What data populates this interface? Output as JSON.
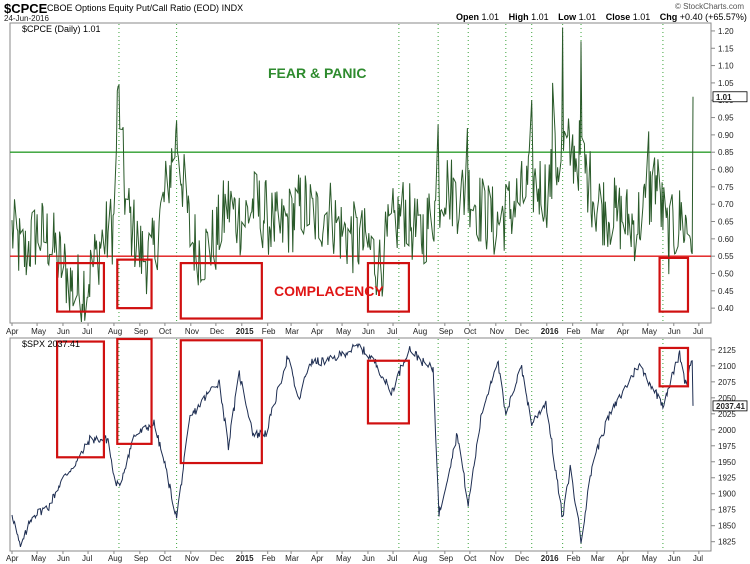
{
  "header": {
    "symbol": "$CPCE",
    "description": "CBOE Options Equity Put/Call Ratio (EOD)",
    "exchange": "INDX",
    "date": "24-Jun-2016",
    "watermark": "© StockCharts.com",
    "ohlc": [
      {
        "label": "Open",
        "value": "1.01"
      },
      {
        "label": "High",
        "value": "1.01"
      },
      {
        "label": "Low",
        "value": "1.01"
      },
      {
        "label": "Close",
        "value": "1.01"
      },
      {
        "label": "Chg",
        "value": "+0.40 (+65.57%)"
      }
    ]
  },
  "chart_data": [
    {
      "type": "line",
      "title": "$CPCE (Daily) 1.01",
      "series_color": "#2a5a2a",
      "last_value_label": "1.01",
      "ylim": [
        0.36,
        1.22
      ],
      "y_ticks": [
        "1.20",
        "1.15",
        "1.10",
        "1.05",
        "1.00",
        "0.95",
        "0.90",
        "0.85",
        "0.80",
        "0.75",
        "0.70",
        "0.65",
        "0.60",
        "0.55",
        "0.50",
        "0.45",
        "0.40"
      ],
      "x_start": "2014-04-01",
      "x_end": "2016-06-24",
      "reference_lines": [
        {
          "value": 0.85,
          "color": "#2e9e2e"
        },
        {
          "value": 0.55,
          "color": "#e01515"
        }
      ],
      "annotations": [
        "FEAR & PANIC",
        "COMPLACENCY"
      ],
      "anchors": [
        [
          "2014-04-01",
          0.62
        ],
        [
          "2014-04-15",
          0.55
        ],
        [
          "2014-05-01",
          0.62
        ],
        [
          "2014-05-15",
          0.6
        ],
        [
          "2014-06-01",
          0.52
        ],
        [
          "2014-06-15",
          0.45
        ],
        [
          "2014-07-01",
          0.48
        ],
        [
          "2014-07-15",
          0.58
        ],
        [
          "2014-08-01",
          0.64
        ],
        [
          "2014-08-06",
          1.04
        ],
        [
          "2014-08-15",
          0.7
        ],
        [
          "2014-09-01",
          0.56
        ],
        [
          "2014-09-15",
          0.54
        ],
        [
          "2014-10-01",
          0.72
        ],
        [
          "2014-10-15",
          0.9
        ],
        [
          "2014-11-01",
          0.6
        ],
        [
          "2014-11-15",
          0.56
        ],
        [
          "2014-12-01",
          0.6
        ],
        [
          "2014-12-15",
          0.7
        ],
        [
          "2015-01-01",
          0.65
        ],
        [
          "2015-01-15",
          0.7
        ],
        [
          "2015-02-01",
          0.66
        ],
        [
          "2015-02-15",
          0.62
        ],
        [
          "2015-03-01",
          0.66
        ],
        [
          "2015-03-15",
          0.7
        ],
        [
          "2015-04-01",
          0.66
        ],
        [
          "2015-04-15",
          0.68
        ],
        [
          "2015-05-01",
          0.62
        ],
        [
          "2015-05-15",
          0.6
        ],
        [
          "2015-06-01",
          0.58
        ],
        [
          "2015-06-15",
          0.52
        ],
        [
          "2015-07-01",
          0.64
        ],
        [
          "2015-07-15",
          0.68
        ],
        [
          "2015-08-01",
          0.6
        ],
        [
          "2015-08-15",
          0.66
        ],
        [
          "2015-09-01",
          0.76
        ],
        [
          "2015-09-15",
          0.72
        ],
        [
          "2015-10-01",
          0.74
        ],
        [
          "2015-10-15",
          0.68
        ],
        [
          "2015-11-01",
          0.64
        ],
        [
          "2015-11-15",
          0.68
        ],
        [
          "2015-12-01",
          0.72
        ],
        [
          "2015-12-15",
          0.76
        ],
        [
          "2016-01-01",
          0.74
        ],
        [
          "2016-01-20",
          0.86
        ],
        [
          "2016-02-10",
          0.84
        ],
        [
          "2016-03-01",
          0.7
        ],
        [
          "2016-03-15",
          0.68
        ],
        [
          "2016-04-01",
          0.66
        ],
        [
          "2016-04-15",
          0.64
        ],
        [
          "2016-05-01",
          0.7
        ],
        [
          "2016-05-10",
          0.78
        ],
        [
          "2016-05-25",
          0.6
        ],
        [
          "2016-06-10",
          0.66
        ],
        [
          "2016-06-23",
          0.61
        ],
        [
          "2016-06-24",
          1.01
        ]
      ],
      "spikes": [
        [
          "2014-08-06",
          1.04
        ],
        [
          "2014-10-14",
          0.91
        ],
        [
          "2015-08-24",
          0.93
        ],
        [
          "2015-09-28",
          0.92
        ],
        [
          "2015-12-14",
          1.0
        ],
        [
          "2016-01-08",
          1.05
        ],
        [
          "2016-01-20",
          1.21
        ],
        [
          "2016-02-11",
          1.17
        ],
        [
          "2016-05-02",
          0.91
        ]
      ]
    },
    {
      "type": "line",
      "title": "$SPX 2037.41",
      "series_color": "#1e2e52",
      "last_value_label": "2037.41",
      "ylim": [
        1812,
        2142
      ],
      "y_ticks": [
        "2125",
        "2100",
        "2075",
        "2050",
        "2025",
        "2000",
        "1975",
        "1950",
        "1925",
        "1900",
        "1875",
        "1850",
        "1825"
      ],
      "x_start": "2014-04-01",
      "x_end": "2016-06-24",
      "anchors": [
        [
          "2014-04-01",
          1870
        ],
        [
          "2014-04-11",
          1815
        ],
        [
          "2014-04-25",
          1865
        ],
        [
          "2014-05-15",
          1880
        ],
        [
          "2014-05-30",
          1920
        ],
        [
          "2014-06-20",
          1955
        ],
        [
          "2014-07-03",
          1985
        ],
        [
          "2014-07-25",
          1985
        ],
        [
          "2014-08-01",
          1925
        ],
        [
          "2014-08-07",
          1910
        ],
        [
          "2014-08-25",
          1990
        ],
        [
          "2014-09-18",
          2010
        ],
        [
          "2014-10-01",
          1945
        ],
        [
          "2014-10-15",
          1862
        ],
        [
          "2014-10-31",
          2018
        ],
        [
          "2014-11-28",
          2068
        ],
        [
          "2014-12-05",
          2075
        ],
        [
          "2014-12-16",
          1975
        ],
        [
          "2014-12-29",
          2088
        ],
        [
          "2015-01-15",
          1992
        ],
        [
          "2015-01-30",
          1995
        ],
        [
          "2015-02-25",
          2115
        ],
        [
          "2015-03-10",
          2045
        ],
        [
          "2015-03-23",
          2105
        ],
        [
          "2015-04-15",
          2108
        ],
        [
          "2015-05-21",
          2131
        ],
        [
          "2015-06-10",
          2105
        ],
        [
          "2015-06-29",
          2058
        ],
        [
          "2015-07-20",
          2128
        ],
        [
          "2015-08-10",
          2100
        ],
        [
          "2015-08-18",
          2096
        ],
        [
          "2015-08-25",
          1867
        ],
        [
          "2015-09-16",
          1995
        ],
        [
          "2015-09-29",
          1882
        ],
        [
          "2015-10-15",
          2025
        ],
        [
          "2015-11-03",
          2110
        ],
        [
          "2015-11-13",
          2020
        ],
        [
          "2015-12-01",
          2102
        ],
        [
          "2015-12-14",
          2010
        ],
        [
          "2015-12-31",
          2043
        ],
        [
          "2016-01-20",
          1860
        ],
        [
          "2016-01-29",
          1940
        ],
        [
          "2016-02-11",
          1829
        ],
        [
          "2016-02-25",
          1950
        ],
        [
          "2016-03-15",
          2020
        ],
        [
          "2016-04-20",
          2102
        ],
        [
          "2016-05-19",
          2040
        ],
        [
          "2016-06-08",
          2119
        ],
        [
          "2016-06-15",
          2072
        ],
        [
          "2016-06-23",
          2113
        ],
        [
          "2016-06-24",
          2037
        ]
      ]
    }
  ],
  "x_axis": {
    "labels": [
      {
        "text": "Apr",
        "date": "2014-04-01"
      },
      {
        "text": "May",
        "date": "2014-05-01"
      },
      {
        "text": "Jun",
        "date": "2014-06-01"
      },
      {
        "text": "Jul",
        "date": "2014-07-01"
      },
      {
        "text": "Aug",
        "date": "2014-08-01"
      },
      {
        "text": "Sep",
        "date": "2014-09-01"
      },
      {
        "text": "Oct",
        "date": "2014-10-01"
      },
      {
        "text": "Nov",
        "date": "2014-11-01"
      },
      {
        "text": "Dec",
        "date": "2014-12-01"
      },
      {
        "text": "2015",
        "date": "2015-01-01",
        "bold": true
      },
      {
        "text": "Feb",
        "date": "2015-02-01"
      },
      {
        "text": "Mar",
        "date": "2015-03-01"
      },
      {
        "text": "Apr",
        "date": "2015-04-01"
      },
      {
        "text": "May",
        "date": "2015-05-01"
      },
      {
        "text": "Jun",
        "date": "2015-06-01"
      },
      {
        "text": "Jul",
        "date": "2015-07-01"
      },
      {
        "text": "Aug",
        "date": "2015-08-01"
      },
      {
        "text": "Sep",
        "date": "2015-09-01"
      },
      {
        "text": "Oct",
        "date": "2015-10-01"
      },
      {
        "text": "Nov",
        "date": "2015-11-01"
      },
      {
        "text": "Dec",
        "date": "2015-12-01"
      },
      {
        "text": "2016",
        "date": "2016-01-01",
        "bold": true
      },
      {
        "text": "Feb",
        "date": "2016-02-01"
      },
      {
        "text": "Mar",
        "date": "2016-03-01"
      },
      {
        "text": "Apr",
        "date": "2016-04-01"
      },
      {
        "text": "May",
        "date": "2016-05-01"
      },
      {
        "text": "Jun",
        "date": "2016-06-01"
      },
      {
        "text": "Jul",
        "date": "2016-07-01"
      }
    ],
    "event_lines": [
      "2014-08-07",
      "2014-10-15",
      "2015-07-08",
      "2015-08-24",
      "2015-09-29",
      "2015-11-13",
      "2015-12-14",
      "2016-01-20",
      "2016-02-11",
      "2016-05-19"
    ]
  },
  "highlight_boxes": [
    {
      "start": "2014-05-25",
      "end": "2014-07-20",
      "cpce": [
        0.53,
        0.39
      ],
      "spx": [
        2138,
        1957
      ]
    },
    {
      "start": "2014-08-05",
      "end": "2014-09-15",
      "cpce": [
        0.54,
        0.4
      ],
      "spx": [
        2142,
        1978
      ]
    },
    {
      "start": "2014-10-20",
      "end": "2015-01-25",
      "cpce": [
        0.53,
        0.37
      ],
      "spx": [
        2140,
        1948
      ]
    },
    {
      "start": "2015-06-01",
      "end": "2015-07-20",
      "cpce": [
        0.53,
        0.39
      ],
      "spx": [
        2108,
        2010
      ]
    },
    {
      "start": "2016-05-15",
      "end": "2016-06-18",
      "cpce": [
        0.545,
        0.39
      ],
      "spx": [
        2128,
        2068
      ]
    }
  ]
}
